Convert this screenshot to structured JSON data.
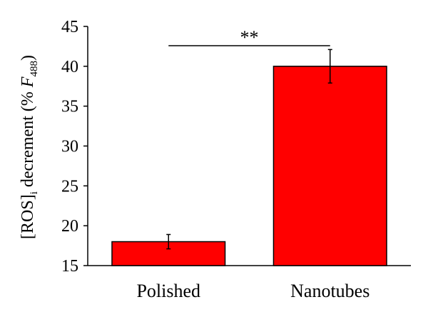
{
  "chart_data": {
    "type": "bar",
    "categories": [
      "Polished",
      "Nanotubes"
    ],
    "values": [
      18.0,
      40.0
    ],
    "error_bars": [
      0.9,
      2.1
    ],
    "ylim": [
      15,
      45
    ],
    "yticks": [
      15,
      20,
      25,
      30,
      35,
      40,
      45
    ],
    "ylabel": {
      "prefix": "[ROS]",
      "prefix_sub": "i",
      "middle": " decrement (% ",
      "var": "F",
      "var_sub": "488",
      "suffix": ")"
    },
    "annotation": "**",
    "grid": false,
    "legend": "none",
    "bar_color": "#ff0000",
    "bar_edge_color": "#000000"
  }
}
